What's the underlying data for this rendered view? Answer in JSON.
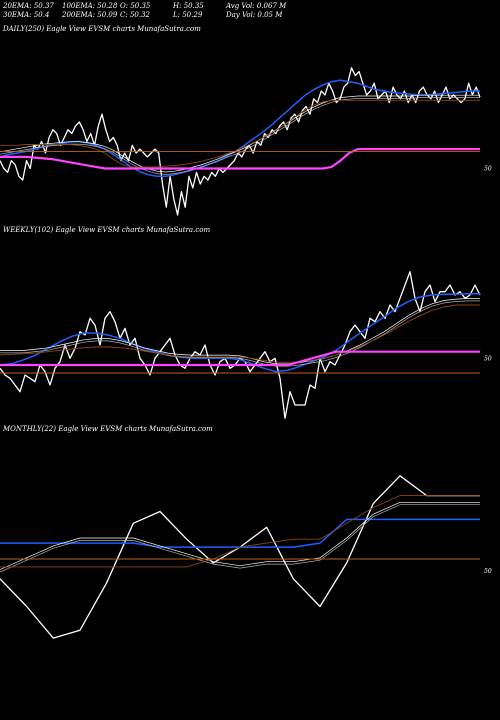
{
  "header": {
    "ema20": "20EMA: 50.37",
    "ema100": "100EMA: 50.28",
    "open": "O: 50.35",
    "high": "H: 50.35",
    "avg_vol": "Avg Vol: 0.067 M",
    "ema30": "30EMA: 50.4",
    "ema200": "200EMA: 50.09",
    "close": "C: 50.32",
    "low": "L: 50.29",
    "day_vol": "Day Vol: 0.05 M"
  },
  "panels": {
    "daily": {
      "label": "DAILY(250) Eagle   View  EVSM charts MunafaSutra.com",
      "tick": "50"
    },
    "weekly": {
      "label": "WEEKLY(102) Eagle   View  EVSM charts MunafaSutra.com",
      "tick": "50"
    },
    "monthly": {
      "label": "MONTHLY(22) Eagle   View  EVSM charts MunafaSutra.com",
      "tick": "50"
    }
  },
  "colors": {
    "background": "#000000",
    "price": "#ffffff",
    "ema_blue": "#1f5fff",
    "ema_slow": "#b0b0b0",
    "ema_brown": "#8b4513",
    "band_pink": "#ff44ff",
    "band_orange": "#c06018"
  },
  "chart_data": [
    {
      "type": "line",
      "name": "daily",
      "ylim": [
        49.4,
        51.4
      ],
      "reference_tick": 50,
      "series": [
        {
          "key": "price",
          "color": "#ffffff",
          "values": [
            50.1,
            50.0,
            49.95,
            50.1,
            50.05,
            49.9,
            49.85,
            50.1,
            50.0,
            50.3,
            50.25,
            50.35,
            50.2,
            50.4,
            50.5,
            50.45,
            50.3,
            50.4,
            50.5,
            50.45,
            50.55,
            50.6,
            50.5,
            50.35,
            50.45,
            50.3,
            50.55,
            50.7,
            50.5,
            50.35,
            50.4,
            50.3,
            50.1,
            50.2,
            50.1,
            50.3,
            50.2,
            50.25,
            50.2,
            50.15,
            50.2,
            50.25,
            50.2,
            49.8,
            49.5,
            49.9,
            49.6,
            49.4,
            49.7,
            49.5,
            49.9,
            49.75,
            49.95,
            49.8,
            49.9,
            49.85,
            49.95,
            49.9,
            50.0,
            49.95,
            50.0,
            50.05,
            50.1,
            50.2,
            50.15,
            50.25,
            50.3,
            50.2,
            50.35,
            50.3,
            50.45,
            50.4,
            50.5,
            50.45,
            50.55,
            50.6,
            50.5,
            50.65,
            50.7,
            50.6,
            50.75,
            50.8,
            50.7,
            50.9,
            50.85,
            51.0,
            50.95,
            51.1,
            51.0,
            50.85,
            50.9,
            51.05,
            51.1,
            51.3,
            51.2,
            51.25,
            51.1,
            50.95,
            51.0,
            51.1,
            50.9,
            50.95,
            51.0,
            50.85,
            51.05,
            50.95,
            50.9,
            51.0,
            50.85,
            50.95,
            50.85,
            51.0,
            51.05,
            50.95,
            50.9,
            51.0,
            50.85,
            50.95,
            51.05,
            50.9,
            50.95,
            50.9,
            50.85,
            50.9,
            51.1,
            50.95,
            51.05,
            50.92
          ]
        },
        {
          "key": "ema_fast",
          "color": "#1f5fff",
          "values": [
            50.15,
            50.18,
            50.2,
            50.22,
            50.25,
            50.28,
            50.3,
            50.32,
            50.34,
            50.35,
            50.33,
            50.3,
            50.25,
            50.18,
            50.1,
            50.02,
            49.96,
            49.92,
            49.9,
            49.9,
            49.92,
            49.95,
            49.98,
            50.02,
            50.06,
            50.1,
            50.16,
            50.22,
            50.3,
            50.38,
            50.46,
            50.55,
            50.65,
            50.75,
            50.85,
            50.95,
            51.02,
            51.08,
            51.12,
            51.14,
            51.12,
            51.1,
            51.06,
            51.02,
            51.0,
            50.98,
            50.97,
            50.96,
            50.95,
            50.95,
            50.96,
            50.97,
            50.98,
            50.99,
            51.0,
            51.0
          ]
        },
        {
          "key": "ema_slow",
          "color": "#b0b0b0",
          "values": [
            50.2,
            50.22,
            50.24,
            50.26,
            50.28,
            50.3,
            50.31,
            50.32,
            50.33,
            50.33,
            50.32,
            50.3,
            50.27,
            50.22,
            50.15,
            50.08,
            50.02,
            49.98,
            49.95,
            49.94,
            49.95,
            49.97,
            50.0,
            50.03,
            50.07,
            50.11,
            50.16,
            50.2,
            50.25,
            50.31,
            50.37,
            50.44,
            50.51,
            50.58,
            50.65,
            50.72,
            50.78,
            50.83,
            50.87,
            50.9,
            50.91,
            50.92,
            50.92,
            50.92,
            50.92,
            50.92,
            50.92,
            50.92,
            50.93,
            50.93,
            50.93,
            50.93,
            50.93,
            50.93,
            50.93,
            50.93
          ]
        },
        {
          "key": "ema_brown",
          "color": "#8b4513",
          "values": [
            50.3,
            50.3,
            50.3,
            50.31,
            50.31,
            50.31,
            50.31,
            50.31,
            50.31,
            50.3,
            50.28,
            50.25,
            50.2,
            50.12,
            50.05,
            50.02,
            50.02,
            50.02,
            50.02,
            50.03,
            50.04,
            50.05,
            50.07,
            50.09,
            50.12,
            50.15,
            50.19,
            50.23,
            50.28,
            50.33,
            50.39,
            50.45,
            50.52,
            50.6,
            50.68,
            50.76,
            50.82,
            50.86,
            50.88,
            50.88,
            50.88,
            50.88,
            50.88,
            50.88,
            50.88,
            50.88,
            50.88,
            50.88,
            50.88,
            50.88,
            50.88,
            50.88,
            50.88,
            50.88,
            50.88,
            50.88
          ]
        },
        {
          "key": "band_pink",
          "color": "#ff44ff",
          "values": [
            50.15,
            50.15,
            50.15,
            50.15,
            50.14,
            50.13,
            50.12,
            50.1,
            50.08,
            50.06,
            50.04,
            50.02,
            50.0,
            50.0,
            50.0,
            50.0,
            50.0,
            50.0,
            50.0,
            50.0,
            50.0,
            50.0,
            50.0,
            50.0,
            50.0,
            50.0,
            50.0,
            50.0,
            50.0,
            50.0,
            50.0,
            50.0,
            50.0,
            50.0,
            50.0,
            50.0,
            50.0,
            50.0,
            50.02,
            50.1,
            50.2,
            50.25,
            50.25,
            50.25,
            50.25,
            50.25,
            50.25,
            50.25,
            50.25,
            50.25,
            50.25,
            50.25,
            50.25,
            50.25,
            50.25,
            50.25
          ]
        },
        {
          "key": "band_orange",
          "color": "#c06018",
          "values": [
            50.22,
            50.22,
            50.22,
            50.22,
            50.22,
            50.22,
            50.22,
            50.22,
            50.22,
            50.22,
            50.22,
            50.22,
            50.22,
            50.22,
            50.22,
            50.22,
            50.22,
            50.22,
            50.22,
            50.22,
            50.22,
            50.22,
            50.22,
            50.22,
            50.22,
            50.22,
            50.22,
            50.22,
            50.22,
            50.22,
            50.22,
            50.22,
            50.22,
            50.22,
            50.22,
            50.22,
            50.22,
            50.22,
            50.22,
            50.22,
            50.22,
            50.22,
            50.22,
            50.22,
            50.22,
            50.22,
            50.22,
            50.22,
            50.22,
            50.22,
            50.22,
            50.22,
            50.22,
            50.22,
            50.22,
            50.22
          ]
        }
      ]
    },
    {
      "type": "line",
      "name": "weekly",
      "ylim": [
        49.0,
        51.4
      ],
      "reference_tick": 50,
      "series": [
        {
          "key": "price",
          "color": "#ffffff",
          "values": [
            49.85,
            49.75,
            49.7,
            49.6,
            49.5,
            49.75,
            49.7,
            49.65,
            49.9,
            49.8,
            49.6,
            49.85,
            49.95,
            50.2,
            50.0,
            50.15,
            50.4,
            50.35,
            50.6,
            50.5,
            50.2,
            50.6,
            50.7,
            50.55,
            50.3,
            50.45,
            50.2,
            50.3,
            50.0,
            49.9,
            49.75,
            50.0,
            50.1,
            50.2,
            50.3,
            50.05,
            49.9,
            49.85,
            50.0,
            50.1,
            50.05,
            50.2,
            49.9,
            49.75,
            49.95,
            50.0,
            49.85,
            49.9,
            50.0,
            49.95,
            49.8,
            49.9,
            50.0,
            50.1,
            49.95,
            50.0,
            49.7,
            49.1,
            49.5,
            49.3,
            49.3,
            49.3,
            49.6,
            49.55,
            50.0,
            49.8,
            49.95,
            49.9,
            50.05,
            50.2,
            50.4,
            50.5,
            50.4,
            50.3,
            50.6,
            50.55,
            50.7,
            50.6,
            50.8,
            50.7,
            50.9,
            51.1,
            51.3,
            50.9,
            50.7,
            51.0,
            51.1,
            50.85,
            51.0,
            51.0,
            51.1,
            50.95,
            51.0,
            50.9,
            50.95,
            51.1,
            50.95
          ]
        },
        {
          "key": "ema_fast",
          "color": "#1f5fff",
          "values": [
            49.9,
            49.92,
            49.98,
            50.05,
            50.15,
            50.25,
            50.33,
            50.38,
            50.38,
            50.35,
            50.3,
            50.22,
            50.15,
            50.1,
            50.05,
            50.02,
            50.0,
            50.0,
            50.0,
            50.0,
            49.98,
            49.92,
            49.85,
            49.8,
            49.82,
            49.88,
            49.95,
            50.02,
            50.12,
            50.25,
            50.38,
            50.5,
            50.62,
            50.75,
            50.85,
            50.92,
            50.95,
            50.96,
            50.96,
            50.97,
            50.97
          ]
        },
        {
          "key": "ema_slow",
          "color": "#b0b0b0",
          "values": [
            50.1,
            50.1,
            50.1,
            50.12,
            50.14,
            50.18,
            50.22,
            50.26,
            50.28,
            50.28,
            50.25,
            50.2,
            50.14,
            50.1,
            50.06,
            50.04,
            50.03,
            50.03,
            50.03,
            50.03,
            50.02,
            49.98,
            49.93,
            49.9,
            49.9,
            49.92,
            49.95,
            49.98,
            50.03,
            50.1,
            50.18,
            50.28,
            50.38,
            50.5,
            50.62,
            50.72,
            50.8,
            50.85,
            50.87,
            50.88,
            50.88
          ]
        },
        {
          "key": "ema_brown",
          "color": "#8b4513",
          "values": [
            50.05,
            50.06,
            50.07,
            50.08,
            50.1,
            50.12,
            50.14,
            50.16,
            50.17,
            50.17,
            50.16,
            50.14,
            50.11,
            50.08,
            50.05,
            50.03,
            50.02,
            50.02,
            50.02,
            50.02,
            50.02,
            50.0,
            49.97,
            49.94,
            49.94,
            49.95,
            49.97,
            50.0,
            50.05,
            50.11,
            50.18,
            50.26,
            50.35,
            50.45,
            50.55,
            50.64,
            50.72,
            50.77,
            50.8,
            50.8,
            50.8
          ]
        },
        {
          "key": "band_pink",
          "color": "#ff44ff",
          "values": [
            49.9,
            49.9,
            49.9,
            49.9,
            49.9,
            49.9,
            49.9,
            49.9,
            49.9,
            49.9,
            49.9,
            49.9,
            49.9,
            49.9,
            49.9,
            49.9,
            49.9,
            49.9,
            49.9,
            49.9,
            49.9,
            49.9,
            49.9,
            49.9,
            49.9,
            49.95,
            50.0,
            50.05,
            50.1,
            50.1,
            50.1,
            50.1,
            50.1,
            50.1,
            50.1,
            50.1,
            50.1,
            50.1,
            50.1,
            50.1,
            50.1
          ]
        },
        {
          "key": "band_orange",
          "color": "#c06018",
          "values": [
            49.78,
            49.78,
            49.78,
            49.78,
            49.78,
            49.78,
            49.78,
            49.78,
            49.78,
            49.78,
            49.78,
            49.78,
            49.78,
            49.78,
            49.78,
            49.78,
            49.78,
            49.78,
            49.78,
            49.78,
            49.78,
            49.78,
            49.78,
            49.78,
            49.78,
            49.78,
            49.78,
            49.78,
            49.78,
            49.78,
            49.78,
            49.78,
            49.78,
            49.78,
            49.78,
            49.78,
            49.78,
            49.78,
            49.78,
            49.78,
            49.78
          ]
        }
      ]
    },
    {
      "type": "line",
      "name": "monthly",
      "ylim": [
        49.0,
        51.4
      ],
      "reference_tick": 50,
      "series": [
        {
          "key": "price",
          "color": "#ffffff",
          "values": [
            49.9,
            49.55,
            49.15,
            49.25,
            49.85,
            50.6,
            50.75,
            50.4,
            50.1,
            50.3,
            50.55,
            49.9,
            49.55,
            50.1,
            50.85,
            51.2,
            50.95,
            50.95,
            50.95
          ]
        },
        {
          "key": "ema_fast",
          "color": "#1f5fff",
          "values": [
            50.35,
            50.35,
            50.35,
            50.35,
            50.35,
            50.35,
            50.3,
            50.3,
            50.3,
            50.3,
            50.3,
            50.3,
            50.35,
            50.65,
            50.65,
            50.65,
            50.65,
            50.65,
            50.65
          ]
        },
        {
          "key": "ema_slow",
          "color": "#b0b0b0",
          "values": [
            50.0,
            50.15,
            50.3,
            50.4,
            50.4,
            50.4,
            50.3,
            50.2,
            50.1,
            50.05,
            50.1,
            50.1,
            50.15,
            50.4,
            50.7,
            50.85,
            50.85,
            50.85,
            50.85
          ]
        },
        {
          "key": "ema_brown",
          "color": "#8b4513",
          "values": [
            50.05,
            50.05,
            50.05,
            50.05,
            50.05,
            50.05,
            50.05,
            50.05,
            50.15,
            50.3,
            50.35,
            50.4,
            50.4,
            50.6,
            50.8,
            50.95,
            50.95,
            50.95,
            50.95
          ]
        },
        {
          "key": "band_orange",
          "color": "#c06018",
          "values": [
            50.15,
            50.15,
            50.15,
            50.15,
            50.15,
            50.15,
            50.15,
            50.15,
            50.15,
            50.15,
            50.15,
            50.15,
            50.15,
            50.15,
            50.15,
            50.15,
            50.15,
            50.15,
            50.15
          ]
        }
      ]
    }
  ]
}
